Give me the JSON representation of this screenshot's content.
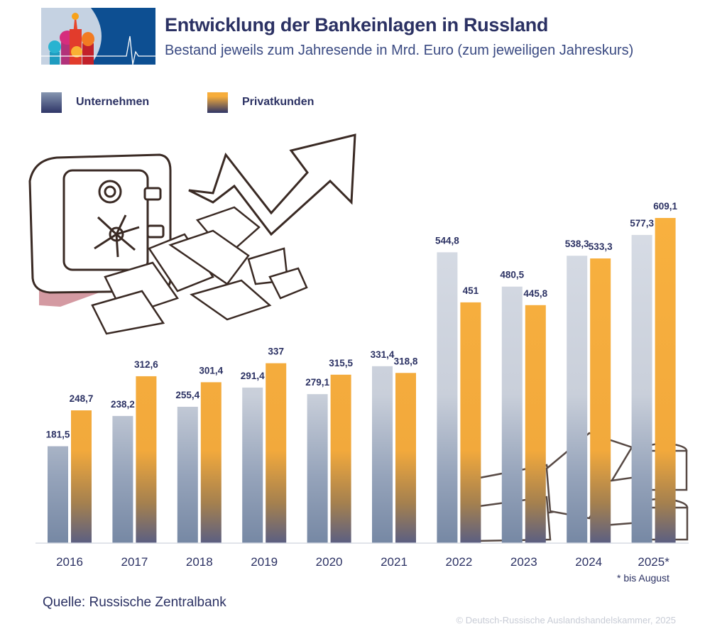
{
  "header": {
    "title": "Entwicklung der Bankeinlagen in Russland",
    "subtitle": "Bestand jeweils zum Jahresende in Mrd. Euro (zum jeweiligen Jahreskurs)"
  },
  "legend": [
    {
      "label": "Unternehmen"
    },
    {
      "label": "Privatkunden"
    }
  ],
  "chart_data": {
    "type": "bar",
    "title": "Entwicklung der Bankeinlagen in Russland",
    "subtitle": "Bestand jeweils zum Jahresende in Mrd. Euro (zum jeweiligen Jahreskurs)",
    "categories": [
      "2016",
      "2017",
      "2018",
      "2019",
      "2020",
      "2021",
      "2022",
      "2023",
      "2024",
      "2025*"
    ],
    "series": [
      {
        "name": "Unternehmen",
        "values": [
          181.5,
          238.2,
          255.4,
          291.4,
          279.1,
          331.4,
          544.8,
          480.5,
          538.3,
          577.3
        ],
        "labels": [
          "181,5",
          "238,2",
          "255,4",
          "291,4",
          "279,1",
          "331,4",
          "544,8",
          "480,5",
          "538,3",
          "577,3"
        ],
        "color_top": "#d6dbe4",
        "color_bottom": "#7b8ba6"
      },
      {
        "name": "Privatkunden",
        "values": [
          248.7,
          312.6,
          301.4,
          337,
          315.5,
          318.8,
          451,
          445.8,
          533.3,
          609.1
        ],
        "labels": [
          "248,7",
          "312,6",
          "301,4",
          "337",
          "315,5",
          "318,8",
          "451",
          "445,8",
          "533,3",
          "609,1"
        ],
        "color_top": "#f8b13f",
        "color_bottom": "#5e6283"
      }
    ],
    "ylim": [
      0,
      609.1
    ],
    "grid": false,
    "legend_position": "top-left",
    "footnote": "* bis August"
  },
  "source": "Quelle: Russische Zentralbank",
  "copyright": "© Deutsch-Russische Auslandshandelskammer, 2025"
}
